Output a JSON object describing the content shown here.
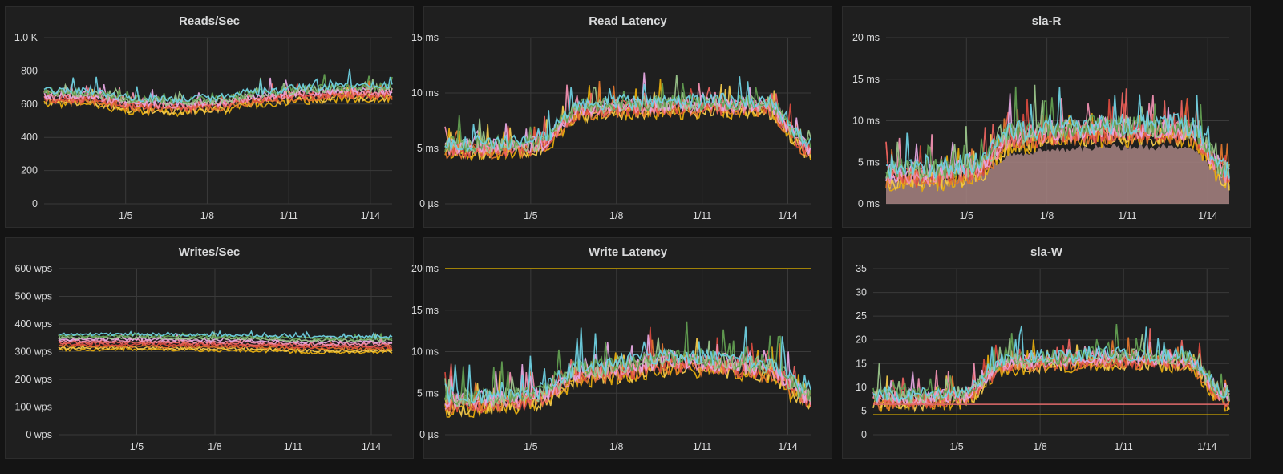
{
  "dashboard": {
    "panels": [
      {
        "id": "reads-sec",
        "title": "Reads/Sec"
      },
      {
        "id": "read-latency",
        "title": "Read Latency"
      },
      {
        "id": "sla-r",
        "title": "sla-R"
      },
      {
        "id": "writes-sec",
        "title": "Writes/Sec"
      },
      {
        "id": "write-latency",
        "title": "Write Latency"
      },
      {
        "id": "sla-w",
        "title": "sla-W"
      }
    ]
  },
  "colors": {
    "background": "#141414",
    "panel": "#1f1f1f",
    "grid": "#3a3a3a",
    "text": "#d8d9da",
    "series": [
      "#e5ac0e",
      "#f2c94c",
      "#e0752d",
      "#d84a3e",
      "#ea6460",
      "#ef8fb0",
      "#e5a8e2",
      "#9ac48a",
      "#629e51",
      "#6ed0e0",
      "#64b0c8",
      "#447ebc",
      "#1f78c1",
      "#705da0",
      "#a93b8e",
      "#8f3bb8",
      "#bf1b00",
      "#cca300"
    ]
  },
  "chart_data": [
    {
      "id": "reads-sec",
      "type": "line",
      "title": "Reads/Sec",
      "x_range": [
        "1/2",
        "1/14"
      ],
      "x_ticks": [
        "1/5",
        "1/8",
        "1/11",
        "1/14"
      ],
      "y_ticks": [
        "0",
        "200",
        "400",
        "600",
        "800",
        "1.0 K"
      ],
      "ylim": [
        0,
        1000
      ],
      "grid": true,
      "series_count": 10,
      "series_profile": {
        "baseline": [
          640,
          640,
          600,
          590,
          600,
          640,
          660,
          670,
          670
        ],
        "noise": 45,
        "spread": 40
      },
      "annotations": []
    },
    {
      "id": "read-latency",
      "type": "line",
      "title": "Read Latency",
      "x_range": [
        "1/2",
        "1/14"
      ],
      "x_ticks": [
        "1/5",
        "1/8",
        "1/11",
        "1/14"
      ],
      "y_ticks": [
        "0 µs",
        "5 ms",
        "10 ms",
        "15 ms"
      ],
      "ylim": [
        0,
        15
      ],
      "unit": "ms",
      "grid": true,
      "series_count": 10,
      "series_profile": {
        "baseline": [
          5,
          5,
          5.2,
          8.5,
          8.7,
          8.8,
          8.8,
          8.8,
          5
        ],
        "noise": 1.4,
        "spread": 0.5
      },
      "annotations": []
    },
    {
      "id": "sla-r",
      "type": "area",
      "title": "sla-R",
      "x_range": [
        "1/2",
        "1/14"
      ],
      "x_ticks": [
        "1/5",
        "1/8",
        "1/11",
        "1/14"
      ],
      "y_ticks": [
        "0 ms",
        "5 ms",
        "10 ms",
        "15 ms",
        "20 ms"
      ],
      "ylim": [
        0,
        20
      ],
      "unit": "ms",
      "grid": true,
      "series_count": 10,
      "fill_color": "#a88482",
      "fill_profile": [
        3,
        3,
        3.2,
        6,
        6.5,
        6.8,
        6.8,
        6.8,
        3
      ],
      "series_profile": {
        "baseline": [
          3.5,
          3.5,
          4,
          8,
          8.5,
          8.8,
          8.8,
          8.8,
          3.5
        ],
        "noise": 2.6,
        "spread": 0.8
      },
      "annotations": []
    },
    {
      "id": "writes-sec",
      "type": "line",
      "title": "Writes/Sec",
      "x_range": [
        "1/2",
        "1/14"
      ],
      "x_ticks": [
        "1/5",
        "1/8",
        "1/11",
        "1/14"
      ],
      "y_ticks": [
        "0 wps",
        "100 wps",
        "200 wps",
        "300 wps",
        "400 wps",
        "500 wps",
        "600 wps"
      ],
      "ylim": [
        0,
        600
      ],
      "unit": "wps",
      "grid": true,
      "series_count": 10,
      "series_profile": {
        "baseline": [
          335,
          335,
          335,
          333,
          332,
          330,
          325,
          325,
          325
        ],
        "noise": 10,
        "spread": 28
      },
      "annotations": []
    },
    {
      "id": "write-latency",
      "type": "line",
      "title": "Write Latency",
      "x_range": [
        "1/2",
        "1/14"
      ],
      "x_ticks": [
        "1/5",
        "1/8",
        "1/11",
        "1/14"
      ],
      "y_ticks": [
        "0 µs",
        "5 ms",
        "10 ms",
        "15 ms",
        "20 ms"
      ],
      "ylim": [
        0,
        20
      ],
      "unit": "ms",
      "grid": true,
      "series_count": 10,
      "series_profile": {
        "baseline": [
          4,
          4,
          4.5,
          7.5,
          8,
          8.8,
          8.5,
          8,
          4.5
        ],
        "noise": 2.2,
        "spread": 0.8
      },
      "thresholds": [
        {
          "value": 20,
          "color": "#cca300"
        }
      ],
      "annotations": []
    },
    {
      "id": "sla-w",
      "type": "line",
      "title": "sla-W",
      "x_range": [
        "1/2",
        "1/14"
      ],
      "x_ticks": [
        "1/5",
        "1/8",
        "1/11",
        "1/14"
      ],
      "y_ticks": [
        "0",
        "5",
        "10",
        "15",
        "20",
        "25",
        "30",
        "35"
      ],
      "ylim": [
        0,
        35
      ],
      "grid": true,
      "series_count": 10,
      "series_profile": {
        "baseline": [
          7.5,
          7.5,
          8,
          15,
          15.5,
          16,
          16,
          15.5,
          7.5
        ],
        "noise": 3.2,
        "spread": 1.1
      },
      "thresholds": [
        {
          "value": 6.4,
          "color": "#e06a6a"
        },
        {
          "value": 4.2,
          "color": "#cca300"
        }
      ],
      "annotations": []
    }
  ]
}
